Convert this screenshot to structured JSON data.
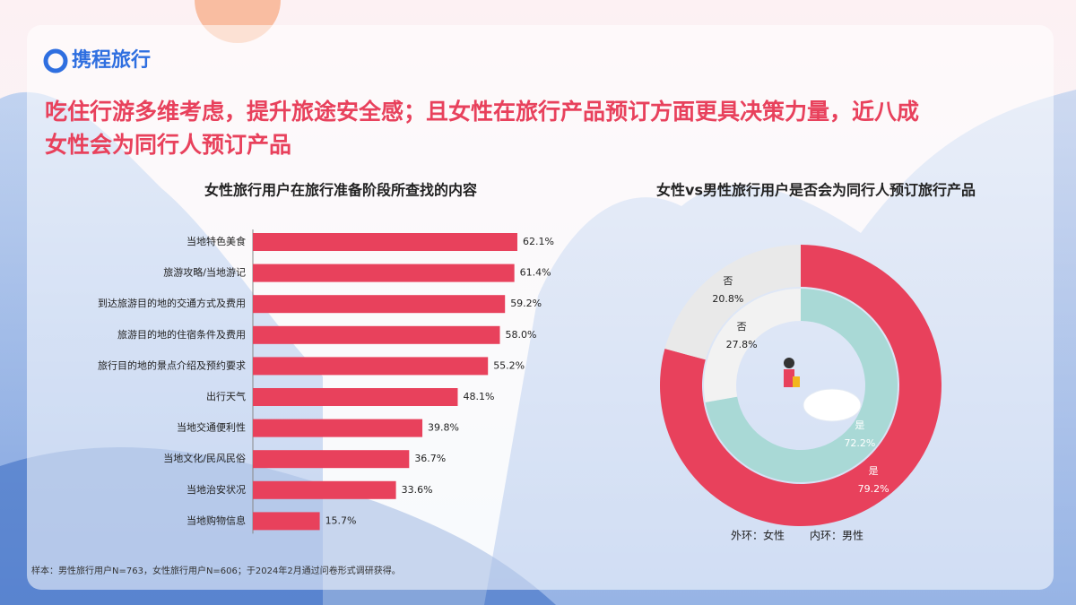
{
  "logo": "携程旅行",
  "headline": [
    "吃住行游多维考虑，提升旅途安全感；且女性在旅行产品预订方面更具决策力量，近八成",
    "女性会为同行人预订产品"
  ],
  "chart_data": [
    {
      "type": "bar",
      "title": "女性旅行用户在旅行准备阶段所查找的内容",
      "categories": [
        "当地特色美食",
        "旅游攻略/当地游记",
        "到达旅游目的地的交通方式及费用",
        "旅游目的地的住宿条件及费用",
        "旅行目的地的景点介绍及预约要求",
        "出行天气",
        "当地交通便利性",
        "当地文化/民风民俗",
        "当地治安状况",
        "当地购物信息"
      ],
      "values": [
        62.1,
        61.4,
        59.2,
        58.0,
        55.2,
        48.1,
        39.8,
        36.7,
        33.6,
        15.7
      ],
      "value_labels": [
        "62.1%",
        "61.4%",
        "59.2%",
        "58.0%",
        "55.2%",
        "48.1%",
        "39.8%",
        "36.7%",
        "33.6%",
        "15.7%"
      ],
      "color": "#e8415c"
    },
    {
      "type": "donut",
      "title": "女性vs男性旅行用户是否会为同行人预订旅行产品",
      "categories": [
        "是",
        "否"
      ],
      "series": [
        {
          "name": "外环：女性",
          "colors": [
            "#e8415c",
            "#e9e9e9"
          ],
          "values": [
            79.2,
            20.8
          ],
          "value_labels": [
            "79.2%",
            "20.8%"
          ]
        },
        {
          "name": "内环：男性",
          "colors": [
            "#a9d9d6",
            "#f2f2f2"
          ],
          "values": [
            72.2,
            27.8
          ],
          "value_labels": [
            "72.2%",
            "27.8%"
          ]
        }
      ]
    }
  ],
  "source": "样本：男性旅行用户N=763，女性旅行用户N=606；于2024年2月通过问卷形式调研获得。"
}
